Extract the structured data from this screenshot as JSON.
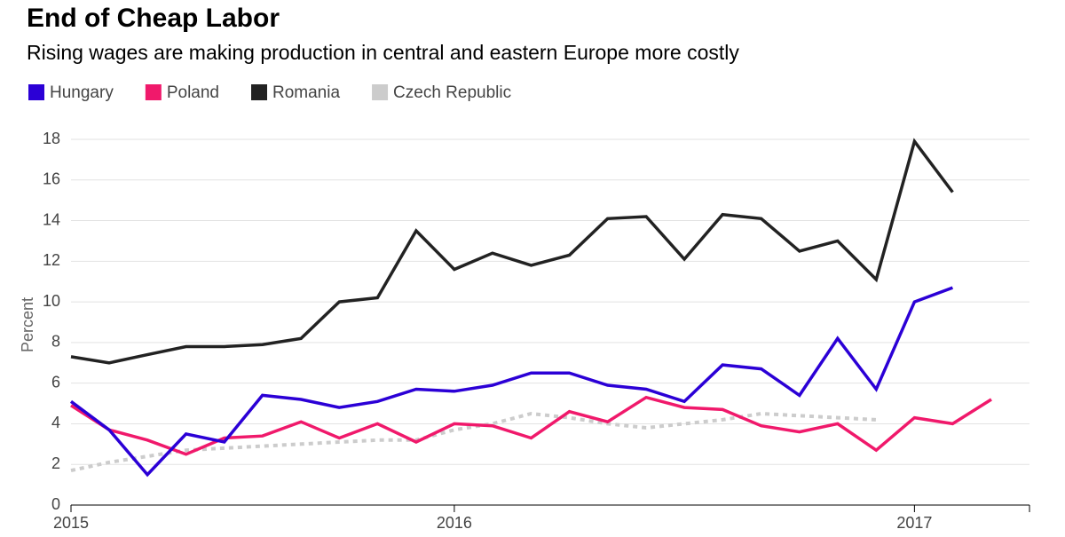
{
  "chart_data": {
    "type": "line",
    "title": "End of Cheap Labor",
    "subtitle": "Rising wages are making production in central and eastern Europe more costly",
    "y_label": "Percent",
    "x": [
      2015.167,
      2015.25,
      2015.333,
      2015.417,
      2015.5,
      2015.583,
      2015.667,
      2015.75,
      2015.833,
      2015.917,
      2016,
      2016.083,
      2016.167,
      2016.25,
      2016.333,
      2016.417,
      2016.5,
      2016.583,
      2016.667,
      2016.75,
      2016.833,
      2016.917,
      2017,
      2017.083,
      2017.167
    ],
    "xlim": [
      2015.167,
      2017.25
    ],
    "xticks": [
      {
        "value": 2015.167,
        "label": "2015"
      },
      2016,
      2017
    ],
    "ylim": [
      0,
      18
    ],
    "yticks": [
      0,
      2,
      4,
      6,
      8,
      10,
      12,
      14,
      16,
      18
    ],
    "grid": true,
    "series": [
      {
        "name": "Hungary",
        "color": "#2b00d6",
        "values": [
          5.1,
          3.7,
          1.5,
          3.5,
          3.1,
          5.4,
          5.2,
          4.8,
          5.1,
          5.7,
          5.6,
          5.9,
          6.5,
          6.5,
          5.9,
          5.7,
          5.1,
          6.9,
          6.7,
          5.4,
          8.2,
          5.7,
          10.0,
          10.7,
          null
        ]
      },
      {
        "name": "Poland",
        "color": "#f0196b",
        "values": [
          4.9,
          3.7,
          3.2,
          2.5,
          3.3,
          3.4,
          4.1,
          3.3,
          4.0,
          3.1,
          4.0,
          3.9,
          3.3,
          4.6,
          4.1,
          5.3,
          4.8,
          4.7,
          3.9,
          3.6,
          4.0,
          2.7,
          4.3,
          4.0,
          5.2
        ]
      },
      {
        "name": "Romania",
        "color": "#222222",
        "values": [
          7.3,
          7.0,
          7.4,
          7.8,
          7.8,
          7.9,
          8.2,
          10.0,
          10.2,
          13.5,
          11.6,
          12.4,
          11.8,
          12.3,
          14.1,
          14.2,
          12.1,
          14.3,
          14.1,
          12.5,
          13.0,
          11.1,
          17.9,
          15.4,
          null
        ]
      },
      {
        "name": "Czech Republic",
        "color": "#cccccc",
        "dashed": true,
        "values": [
          1.7,
          2.1,
          2.4,
          2.7,
          2.8,
          2.9,
          3.0,
          3.1,
          3.2,
          3.2,
          3.7,
          4.0,
          4.5,
          4.3,
          4.0,
          3.8,
          4.0,
          4.2,
          4.5,
          4.4,
          4.3,
          4.2,
          null,
          null,
          null
        ]
      }
    ]
  }
}
